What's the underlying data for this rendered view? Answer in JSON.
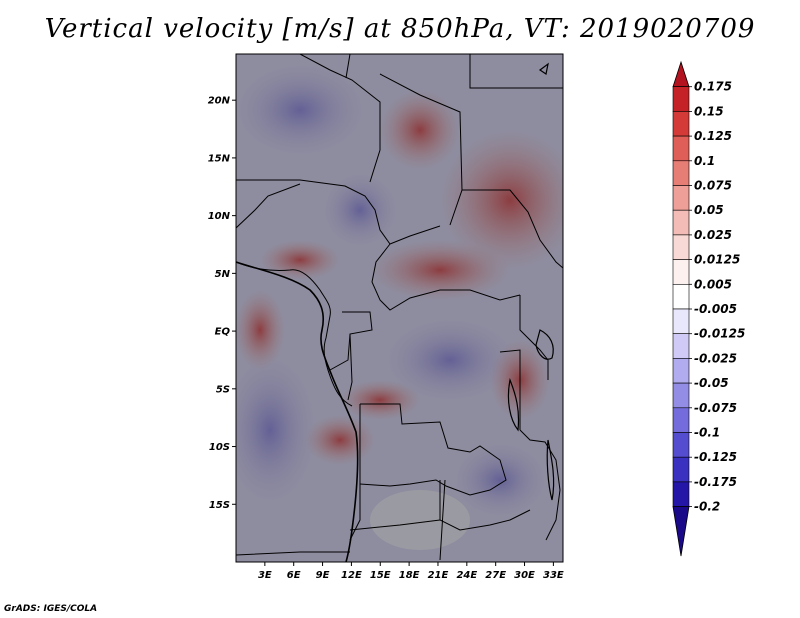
{
  "chart_data": {
    "type": "heatmap",
    "title": "Vertical velocity [m/s] at 850hPa, VT: 2019020709",
    "variable": "Vertical velocity",
    "units": "m/s",
    "level": "850hPa",
    "valid_time": "2019020709",
    "xlabel": "",
    "ylabel": "",
    "lon_range": [
      0,
      34
    ],
    "lat_range": [
      -20,
      24
    ],
    "x_ticks": [
      "3E",
      "6E",
      "9E",
      "12E",
      "15E",
      "18E",
      "21E",
      "24E",
      "27E",
      "30E",
      "33E"
    ],
    "x_tick_values": [
      3,
      6,
      9,
      12,
      15,
      18,
      21,
      24,
      27,
      30,
      33
    ],
    "y_ticks": [
      "20N",
      "15N",
      "10N",
      "5N",
      "EQ",
      "5S",
      "10S",
      "15S"
    ],
    "y_tick_values": [
      20,
      15,
      10,
      5,
      0,
      -5,
      -10,
      -15
    ],
    "colorbar": {
      "labels": [
        "0.175",
        "0.15",
        "0.125",
        "0.1",
        "0.075",
        "0.05",
        "0.025",
        "0.0125",
        "0.005",
        "-0.005",
        "-0.0125",
        "-0.025",
        "-0.05",
        "-0.075",
        "-0.1",
        "-0.125",
        "-0.175",
        "-0.2"
      ],
      "colors": [
        "#b2131f",
        "#c42226",
        "#d43b38",
        "#df5e57",
        "#e67e76",
        "#ee9f97",
        "#f3bcb6",
        "#f8d9d5",
        "#fdf1ef",
        "#ffffff",
        "#e9e7fb",
        "#cfcbf6",
        "#b1acef",
        "#938de6",
        "#746cdc",
        "#554dd0",
        "#3a31c0",
        "#2416a6",
        "#1a0a8a"
      ]
    }
  },
  "footer": "GrADS: IGES/COLA"
}
